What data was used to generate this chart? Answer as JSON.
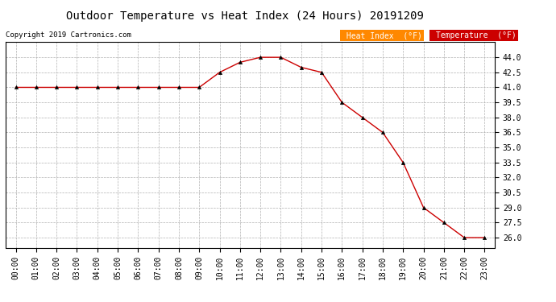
{
  "title": "Outdoor Temperature vs Heat Index (24 Hours) 20191209",
  "copyright": "Copyright 2019 Cartronics.com",
  "hours": [
    "00:00",
    "01:00",
    "02:00",
    "03:00",
    "04:00",
    "05:00",
    "06:00",
    "07:00",
    "08:00",
    "09:00",
    "10:00",
    "11:00",
    "12:00",
    "13:00",
    "14:00",
    "15:00",
    "16:00",
    "17:00",
    "18:00",
    "19:00",
    "20:00",
    "21:00",
    "22:00",
    "23:00"
  ],
  "temperature": [
    41.0,
    41.0,
    41.0,
    41.0,
    41.0,
    41.0,
    41.0,
    41.0,
    41.0,
    41.0,
    42.5,
    43.5,
    44.0,
    44.0,
    43.0,
    42.5,
    39.5,
    38.0,
    36.5,
    33.5,
    29.0,
    27.5,
    26.0,
    26.0
  ],
  "heat_index": [
    41.0,
    41.0,
    41.0,
    41.0,
    41.0,
    41.0,
    41.0,
    41.0,
    41.0,
    41.0,
    42.5,
    43.5,
    44.0,
    44.0,
    43.0,
    42.5,
    39.5,
    38.0,
    36.5,
    33.5,
    29.0,
    27.5,
    26.0,
    26.0
  ],
  "ylim": [
    25.0,
    45.5
  ],
  "yticks": [
    26.0,
    27.5,
    29.0,
    30.5,
    32.0,
    33.5,
    35.0,
    36.5,
    38.0,
    39.5,
    41.0,
    42.5,
    44.0
  ],
  "line_color": "#cc0000",
  "marker_color": "#000000",
  "bg_color": "#ffffff",
  "grid_color": "#b0b0b0",
  "legend_heat_bg": "#ff8800",
  "legend_temp_bg": "#cc0000",
  "legend_text_color": "#ffffff",
  "title_fontsize": 10,
  "copyright_fontsize": 6.5,
  "tick_fontsize": 7,
  "legend_fontsize": 7
}
